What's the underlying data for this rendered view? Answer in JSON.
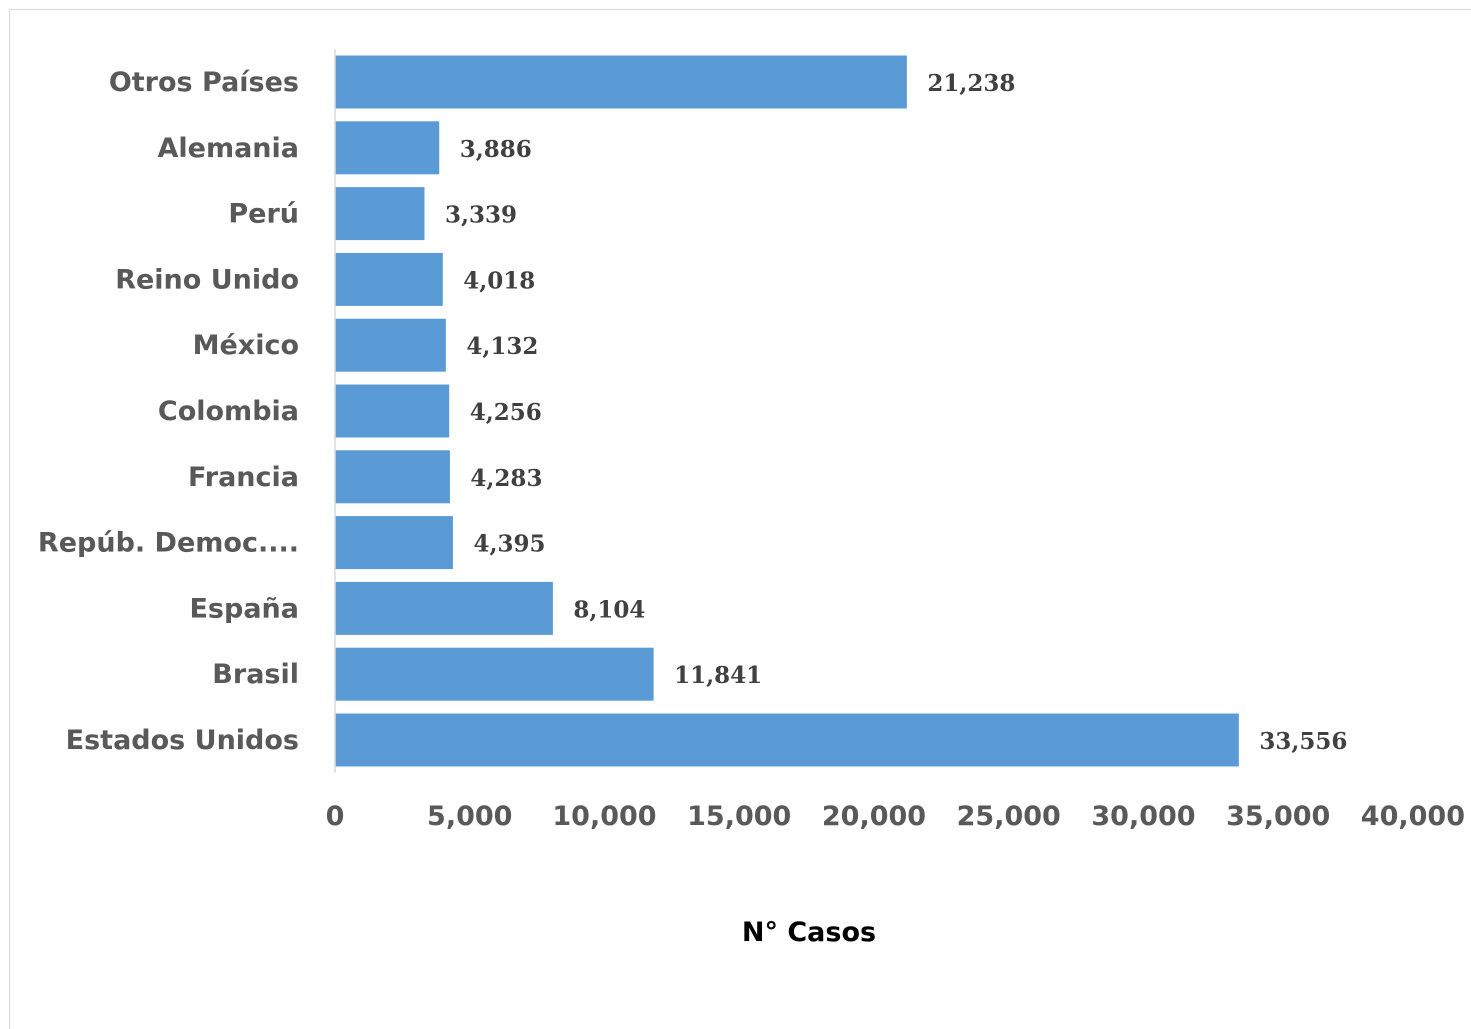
{
  "chart_data": {
    "type": "bar",
    "orientation": "horizontal",
    "categories": [
      "Otros Países",
      "Alemania",
      "Perú",
      "Reino Unido",
      "México",
      "Colombia",
      "Francia",
      "Repúb. Democ....",
      "España",
      "Brasil",
      "Estados Unidos"
    ],
    "values": [
      21238,
      3886,
      3339,
      4018,
      4132,
      4256,
      4283,
      4395,
      8104,
      11841,
      33556
    ],
    "data_labels": [
      "21,238",
      "3,886",
      "3,339",
      "4,018",
      "4,132",
      "4,256",
      "4,283",
      "4,395",
      "8,104",
      "11,841",
      "33,556"
    ],
    "xlim": [
      0,
      40000
    ],
    "x_ticks": [
      0,
      5000,
      10000,
      15000,
      20000,
      25000,
      30000,
      35000,
      40000
    ],
    "x_tick_labels": [
      "0",
      "5,000",
      "10,000",
      "15,000",
      "20,000",
      "25,000",
      "30,000",
      "35,000",
      "40,000"
    ],
    "xlabel": "N° Casos",
    "ylabel": "",
    "title": "",
    "grid": false,
    "legend": "none",
    "bar_color": "#5b9bd5"
  }
}
